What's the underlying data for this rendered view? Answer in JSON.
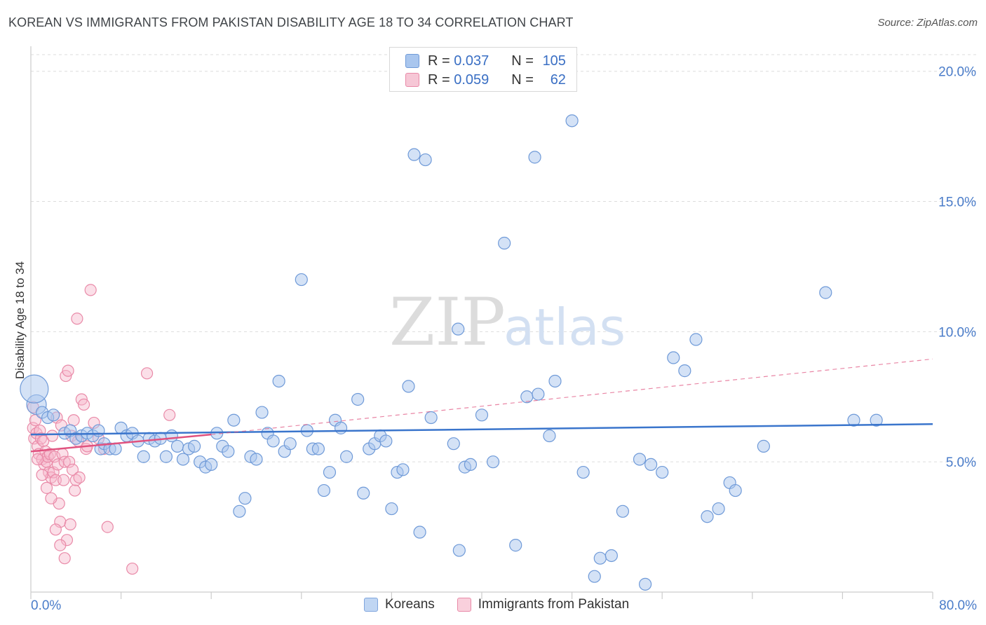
{
  "header": {
    "title": "KOREAN VS IMMIGRANTS FROM PAKISTAN DISABILITY AGE 18 TO 34 CORRELATION CHART",
    "source": "Source: ZipAtlas.com"
  },
  "watermark": {
    "zip": "ZIP",
    "atlas": "atlas"
  },
  "legend": {
    "rows": [
      {
        "r_label": "R =",
        "r_value": "0.037",
        "n_label": "N =",
        "n_value": "105"
      },
      {
        "r_label": "R =",
        "r_value": "0.059",
        "n_label": "N =",
        "n_value": "62"
      }
    ]
  },
  "bottom_legend": {
    "koreans": "Koreans",
    "pakistan": "Immigrants from Pakistan"
  },
  "colors": {
    "korean_fill": "#a9c6ee",
    "korean_stroke": "#6f9ad8",
    "korean_line": "#3a75cc",
    "pak_fill": "#f6b9cc",
    "pak_stroke": "#e98aa8",
    "pak_line": "#e0527f",
    "grid": "#dddddd",
    "axis_text": "#4a7cc9"
  },
  "chart_data": {
    "type": "scatter",
    "title": "KOREAN VS IMMIGRANTS FROM PAKISTAN DISABILITY AGE 18 TO 34 CORRELATION CHART",
    "xlabel": "",
    "ylabel": "Disability Age 18 to 34",
    "xlim": [
      0,
      80
    ],
    "ylim": [
      0,
      20.8
    ],
    "x_tick_labels": [
      "0.0%",
      "80.0%"
    ],
    "y_ticks": [
      5,
      10,
      15,
      20
    ],
    "y_tick_labels": [
      "5.0%",
      "10.0%",
      "15.0%",
      "20.0%"
    ],
    "grid": true,
    "series": [
      {
        "name": "Koreans",
        "R": 0.037,
        "N": 105,
        "trend": {
          "x0": 0,
          "y0": 6.05,
          "x1": 80,
          "y1": 6.45
        },
        "points": [
          [
            0.5,
            7.2
          ],
          [
            1.0,
            6.9
          ],
          [
            1.5,
            6.7
          ],
          [
            2.0,
            6.8
          ],
          [
            3.0,
            6.1
          ],
          [
            3.5,
            6.2
          ],
          [
            4.0,
            5.9
          ],
          [
            4.5,
            6.0
          ],
          [
            5.0,
            6.1
          ],
          [
            5.5,
            6.0
          ],
          [
            6.0,
            6.2
          ],
          [
            6.2,
            5.5
          ],
          [
            6.5,
            5.7
          ],
          [
            7.0,
            5.5
          ],
          [
            7.5,
            5.5
          ],
          [
            8.0,
            6.3
          ],
          [
            8.5,
            6.0
          ],
          [
            9.0,
            6.1
          ],
          [
            9.5,
            5.8
          ],
          [
            10.0,
            5.2
          ],
          [
            10.5,
            5.9
          ],
          [
            11.0,
            5.8
          ],
          [
            11.5,
            5.9
          ],
          [
            12.0,
            5.2
          ],
          [
            12.5,
            6.0
          ],
          [
            13.0,
            5.6
          ],
          [
            13.5,
            5.1
          ],
          [
            14.0,
            5.5
          ],
          [
            14.5,
            5.6
          ],
          [
            15.0,
            5.0
          ],
          [
            15.5,
            4.8
          ],
          [
            16.0,
            4.9
          ],
          [
            16.5,
            6.1
          ],
          [
            17.0,
            5.6
          ],
          [
            17.5,
            5.4
          ],
          [
            18.0,
            6.6
          ],
          [
            18.5,
            3.1
          ],
          [
            19.0,
            3.6
          ],
          [
            19.5,
            5.2
          ],
          [
            20.0,
            5.1
          ],
          [
            20.5,
            6.9
          ],
          [
            21.0,
            6.1
          ],
          [
            21.5,
            5.8
          ],
          [
            22.0,
            8.1
          ],
          [
            22.5,
            5.4
          ],
          [
            23.0,
            5.7
          ],
          [
            24.0,
            12.0
          ],
          [
            24.5,
            6.2
          ],
          [
            25.0,
            5.5
          ],
          [
            25.5,
            5.5
          ],
          [
            26.0,
            3.9
          ],
          [
            26.5,
            4.6
          ],
          [
            27.0,
            6.6
          ],
          [
            27.5,
            6.3
          ],
          [
            28.0,
            5.2
          ],
          [
            29.0,
            7.4
          ],
          [
            29.5,
            3.8
          ],
          [
            30.0,
            5.5
          ],
          [
            30.5,
            5.7
          ],
          [
            31.0,
            6.0
          ],
          [
            31.5,
            5.8
          ],
          [
            32.0,
            3.2
          ],
          [
            32.5,
            4.6
          ],
          [
            33.0,
            4.7
          ],
          [
            33.5,
            7.9
          ],
          [
            34.0,
            16.8
          ],
          [
            34.5,
            2.3
          ],
          [
            35.0,
            16.6
          ],
          [
            35.5,
            6.7
          ],
          [
            37.5,
            5.7
          ],
          [
            37.9,
            10.1
          ],
          [
            38.0,
            1.6
          ],
          [
            38.5,
            4.8
          ],
          [
            39.0,
            4.9
          ],
          [
            40.0,
            6.8
          ],
          [
            41.0,
            5.0
          ],
          [
            42.0,
            13.4
          ],
          [
            43.0,
            1.8
          ],
          [
            44.0,
            7.5
          ],
          [
            44.7,
            16.7
          ],
          [
            45.0,
            7.6
          ],
          [
            46.0,
            6.0
          ],
          [
            46.5,
            8.1
          ],
          [
            48.0,
            18.1
          ],
          [
            49.0,
            4.6
          ],
          [
            50.0,
            0.6
          ],
          [
            50.5,
            1.3
          ],
          [
            51.5,
            1.4
          ],
          [
            52.5,
            3.1
          ],
          [
            54.0,
            5.1
          ],
          [
            54.5,
            0.3
          ],
          [
            55.0,
            4.9
          ],
          [
            56.0,
            4.6
          ],
          [
            57.0,
            9.0
          ],
          [
            58.0,
            8.5
          ],
          [
            59.0,
            9.7
          ],
          [
            60.0,
            2.9
          ],
          [
            61.0,
            3.2
          ],
          [
            62.0,
            4.2
          ],
          [
            62.5,
            3.9
          ],
          [
            65.0,
            5.6
          ],
          [
            70.5,
            11.5
          ],
          [
            73.0,
            6.6
          ],
          [
            75.0,
            6.6
          ],
          [
            0.3,
            7.8
          ]
        ],
        "sizes_note": "two larger markers near x=0"
      },
      {
        "name": "Immigrants from Pakistan",
        "R": 0.059,
        "N": 62,
        "trend": {
          "x0": 0,
          "y0": 5.4,
          "x1": 16,
          "y1": 6.05
        },
        "trend_extended": {
          "x0": 16,
          "y0": 6.05,
          "x1": 80,
          "y1": 8.95
        },
        "points": [
          [
            0.2,
            6.3
          ],
          [
            0.3,
            5.9
          ],
          [
            0.4,
            6.6
          ],
          [
            0.5,
            6.1
          ],
          [
            0.6,
            5.6
          ],
          [
            0.7,
            5.3
          ],
          [
            0.8,
            6.2
          ],
          [
            0.9,
            5.9
          ],
          [
            1.0,
            5.1
          ],
          [
            1.1,
            5.8
          ],
          [
            1.2,
            4.9
          ],
          [
            1.3,
            5.4
          ],
          [
            1.4,
            5.0
          ],
          [
            1.5,
            5.2
          ],
          [
            1.6,
            4.6
          ],
          [
            1.7,
            5.3
          ],
          [
            1.8,
            4.4
          ],
          [
            1.9,
            6.0
          ],
          [
            2.0,
            4.6
          ],
          [
            2.1,
            5.2
          ],
          [
            2.2,
            4.3
          ],
          [
            2.3,
            6.7
          ],
          [
            2.4,
            4.9
          ],
          [
            2.5,
            3.4
          ],
          [
            2.6,
            2.7
          ],
          [
            2.7,
            6.4
          ],
          [
            2.8,
            5.3
          ],
          [
            2.9,
            4.3
          ],
          [
            3.0,
            5.0
          ],
          [
            3.1,
            8.3
          ],
          [
            3.2,
            2.0
          ],
          [
            3.3,
            8.5
          ],
          [
            3.4,
            5.0
          ],
          [
            3.5,
            2.6
          ],
          [
            3.6,
            6.0
          ],
          [
            3.7,
            4.7
          ],
          [
            3.8,
            6.6
          ],
          [
            3.9,
            3.9
          ],
          [
            4.0,
            4.3
          ],
          [
            4.1,
            10.5
          ],
          [
            4.2,
            5.8
          ],
          [
            4.3,
            4.4
          ],
          [
            4.5,
            7.4
          ],
          [
            4.7,
            7.2
          ],
          [
            4.9,
            5.5
          ],
          [
            5.0,
            5.6
          ],
          [
            5.3,
            11.6
          ],
          [
            5.6,
            6.5
          ],
          [
            6.0,
            5.9
          ],
          [
            6.5,
            5.5
          ],
          [
            6.8,
            2.5
          ],
          [
            9.0,
            0.9
          ],
          [
            10.3,
            8.4
          ],
          [
            12.3,
            6.8
          ],
          [
            0.2,
            7.1
          ],
          [
            0.6,
            5.1
          ],
          [
            1.0,
            4.5
          ],
          [
            1.4,
            4.0
          ],
          [
            1.8,
            3.6
          ],
          [
            2.2,
            2.4
          ],
          [
            2.6,
            1.8
          ],
          [
            3.0,
            1.3
          ]
        ]
      }
    ]
  }
}
